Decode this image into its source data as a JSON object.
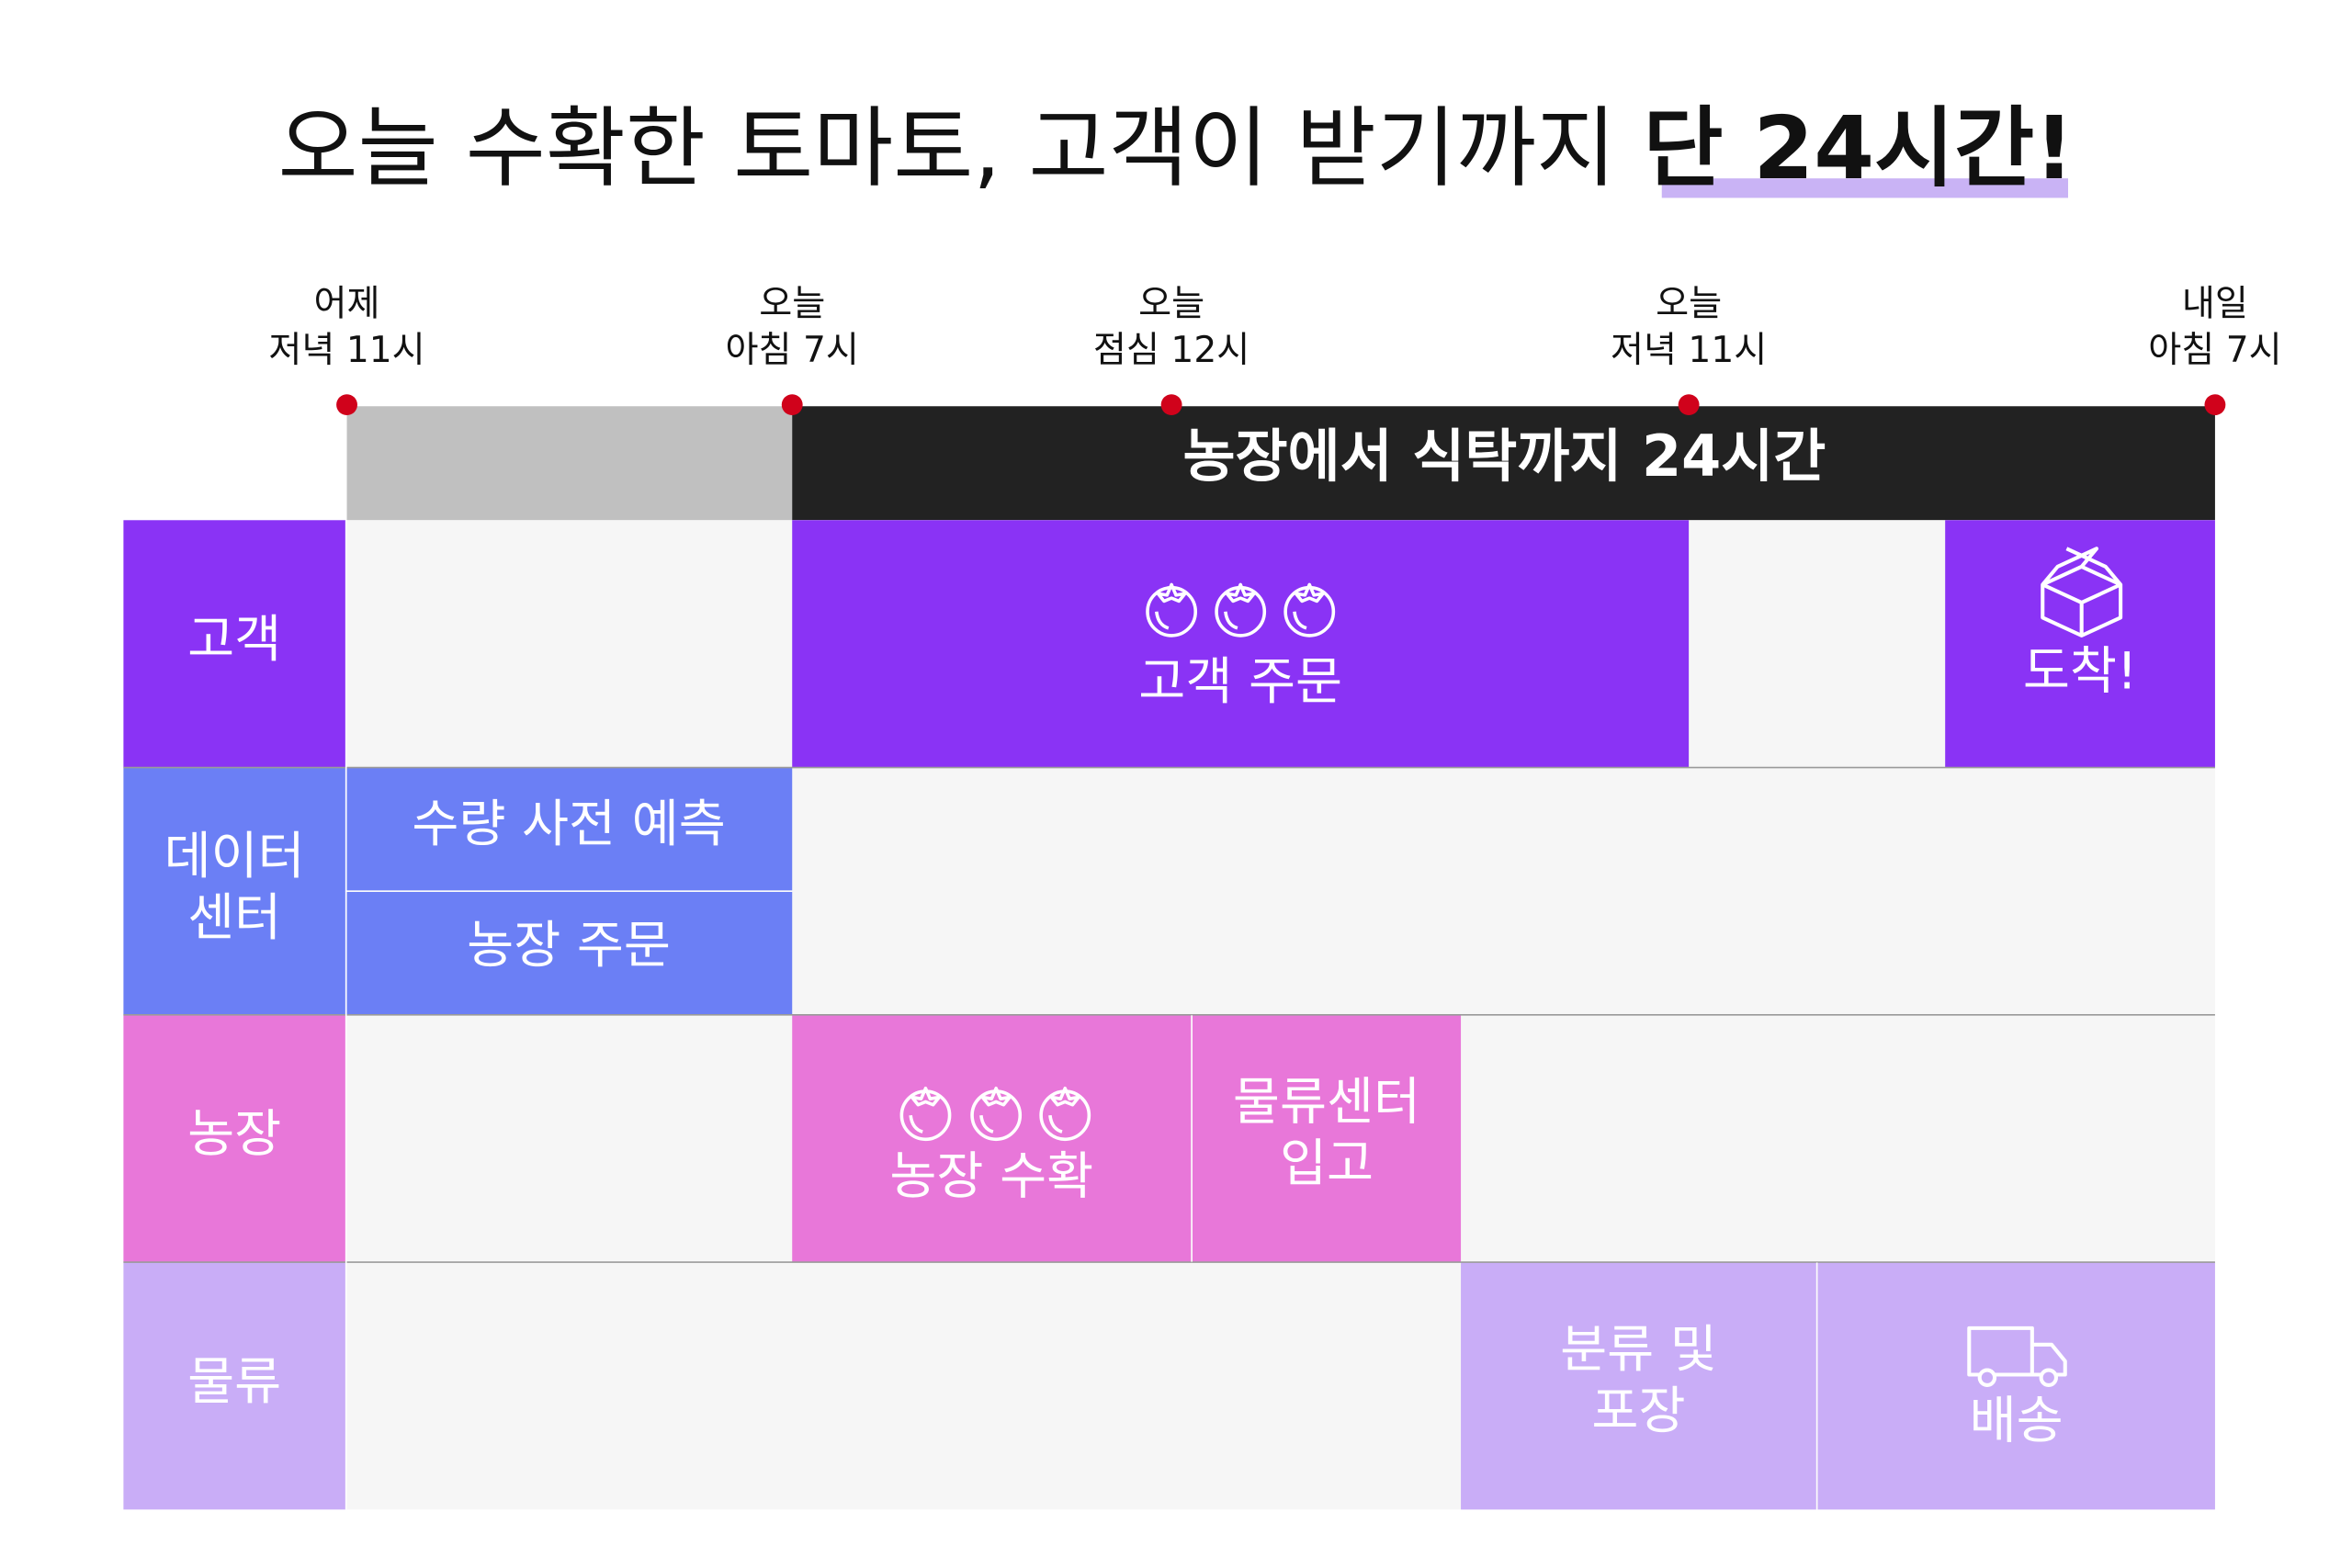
{
  "header": {
    "title": "오늘 수확한 토마토, 고객이 받기까지",
    "highlight": "단 24시간!"
  },
  "timeline": {
    "points": [
      {
        "day": "어제",
        "time": "저녁 11시"
      },
      {
        "day": "오늘",
        "time": "아침 7시"
      },
      {
        "day": "오늘",
        "time": "점심 12시"
      },
      {
        "day": "오늘",
        "time": "저녁 11시"
      },
      {
        "day": "내일",
        "time": "아침 7시"
      }
    ],
    "span_label": "농장에서 식탁까지 24시간"
  },
  "rows": [
    {
      "label": [
        "고객"
      ]
    },
    {
      "label": [
        "데이터",
        "센터"
      ]
    },
    {
      "label": [
        "농장"
      ]
    },
    {
      "label": [
        "물류"
      ]
    }
  ],
  "blocks": [
    {
      "label": [
        "고객 주문"
      ]
    },
    {
      "label": [
        "도착!"
      ]
    },
    {
      "label": [
        "수량 사전 예측"
      ]
    },
    {
      "label": [
        "농장 주문"
      ]
    },
    {
      "label": [
        "농장 수확"
      ]
    },
    {
      "label": [
        "물류센터",
        "입고"
      ]
    },
    {
      "label": [
        "분류 및",
        "포장"
      ]
    },
    {
      "label": [
        "배송"
      ]
    }
  ]
}
